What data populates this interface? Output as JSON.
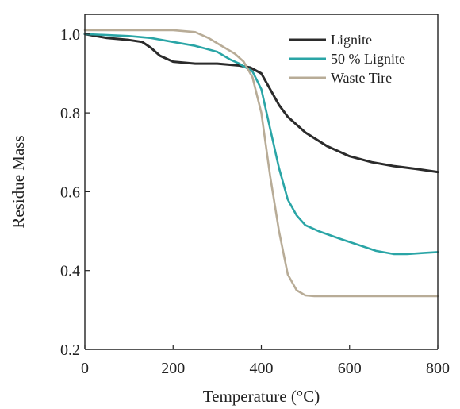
{
  "chart_data": {
    "type": "line",
    "title": "",
    "xlabel": "Temperature (°C)",
    "ylabel": "Residue Mass",
    "xlim": [
      0,
      800
    ],
    "ylim": [
      0.2,
      1.05
    ],
    "xticks": [
      0,
      200,
      400,
      600,
      800
    ],
    "yticks": [
      0.2,
      0.4,
      0.6,
      0.8,
      1.0
    ],
    "xtick_labels": [
      "0",
      "200",
      "400",
      "600",
      "800"
    ],
    "ytick_labels": [
      "0.2",
      "0.4",
      "0.6",
      "0.8",
      "1.0"
    ],
    "grid": false,
    "legend_position": "top-right",
    "series": [
      {
        "name": "Lignite",
        "color": "#2b2b2b",
        "x": [
          0,
          50,
          100,
          130,
          150,
          170,
          200,
          250,
          300,
          350,
          375,
          400,
          420,
          440,
          460,
          500,
          550,
          600,
          650,
          700,
          750,
          800
        ],
        "y": [
          1.0,
          0.99,
          0.985,
          0.98,
          0.965,
          0.945,
          0.93,
          0.925,
          0.925,
          0.92,
          0.915,
          0.9,
          0.86,
          0.82,
          0.79,
          0.75,
          0.715,
          0.69,
          0.675,
          0.665,
          0.658,
          0.65
        ]
      },
      {
        "name": "50 % Lignite",
        "color": "#2aa5a6",
        "x": [
          0,
          100,
          150,
          200,
          250,
          300,
          330,
          350,
          380,
          400,
          420,
          440,
          460,
          480,
          500,
          530,
          580,
          620,
          660,
          700,
          730,
          770,
          800
        ],
        "y": [
          1.0,
          0.995,
          0.99,
          0.98,
          0.97,
          0.955,
          0.935,
          0.925,
          0.905,
          0.86,
          0.76,
          0.66,
          0.58,
          0.54,
          0.515,
          0.5,
          0.48,
          0.465,
          0.45,
          0.442,
          0.442,
          0.445,
          0.447
        ]
      },
      {
        "name": "Waste Tire",
        "color": "#b8ac97",
        "x": [
          0,
          100,
          200,
          250,
          280,
          310,
          340,
          360,
          380,
          400,
          420,
          440,
          460,
          480,
          500,
          520,
          560,
          600,
          700,
          800
        ],
        "y": [
          1.01,
          1.01,
          1.01,
          1.005,
          0.99,
          0.97,
          0.95,
          0.93,
          0.89,
          0.8,
          0.64,
          0.5,
          0.39,
          0.35,
          0.337,
          0.335,
          0.335,
          0.335,
          0.335,
          0.335
        ]
      }
    ]
  }
}
